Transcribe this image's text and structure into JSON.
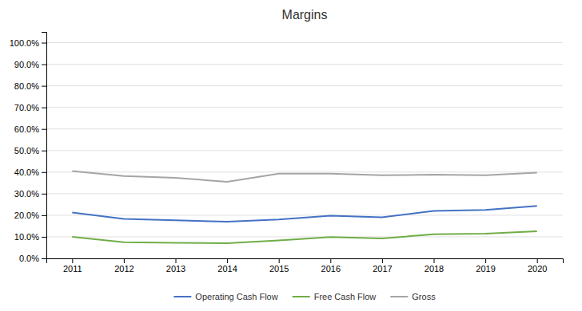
{
  "chart_data": {
    "type": "line",
    "title": "Margins",
    "x": [
      2011,
      2012,
      2013,
      2014,
      2015,
      2016,
      2017,
      2018,
      2019,
      2020
    ],
    "xlim": [
      2010.5,
      2020.5
    ],
    "xticks": [
      2011,
      2012,
      2013,
      2014,
      2015,
      2016,
      2017,
      2018,
      2019,
      2020
    ],
    "series": [
      {
        "name": "Operating Cash Flow",
        "color": "#4472C4",
        "values": [
          0.213,
          0.183,
          0.177,
          0.17,
          0.18,
          0.198,
          0.19,
          0.22,
          0.225,
          0.243
        ]
      },
      {
        "name": "Free Cash Flow",
        "color": "#70AD47",
        "values": [
          0.1,
          0.075,
          0.072,
          0.07,
          0.083,
          0.099,
          0.092,
          0.112,
          0.115,
          0.126
        ]
      },
      {
        "name": "Gross",
        "color": "#A5A5A5",
        "values": [
          0.405,
          0.382,
          0.373,
          0.355,
          0.393,
          0.393,
          0.385,
          0.388,
          0.385,
          0.397
        ]
      }
    ],
    "ylim": [
      0.0,
      1.05
    ],
    "yticks": [
      {
        "value": 0.0,
        "label": "0.0%"
      },
      {
        "value": 0.1,
        "label": "10.0%"
      },
      {
        "value": 0.2,
        "label": "20.0%"
      },
      {
        "value": 0.3,
        "label": "30.0%"
      },
      {
        "value": 0.4,
        "label": "40.0%"
      },
      {
        "value": 0.5,
        "label": "50.0%"
      },
      {
        "value": 0.6,
        "label": "60.0%"
      },
      {
        "value": 0.7,
        "label": "70.0%"
      },
      {
        "value": 0.8,
        "label": "80.0%"
      },
      {
        "value": 0.9,
        "label": "90.0%"
      },
      {
        "value": 1.0,
        "label": "100.0%"
      }
    ],
    "grid": true,
    "legend": "bottom"
  }
}
